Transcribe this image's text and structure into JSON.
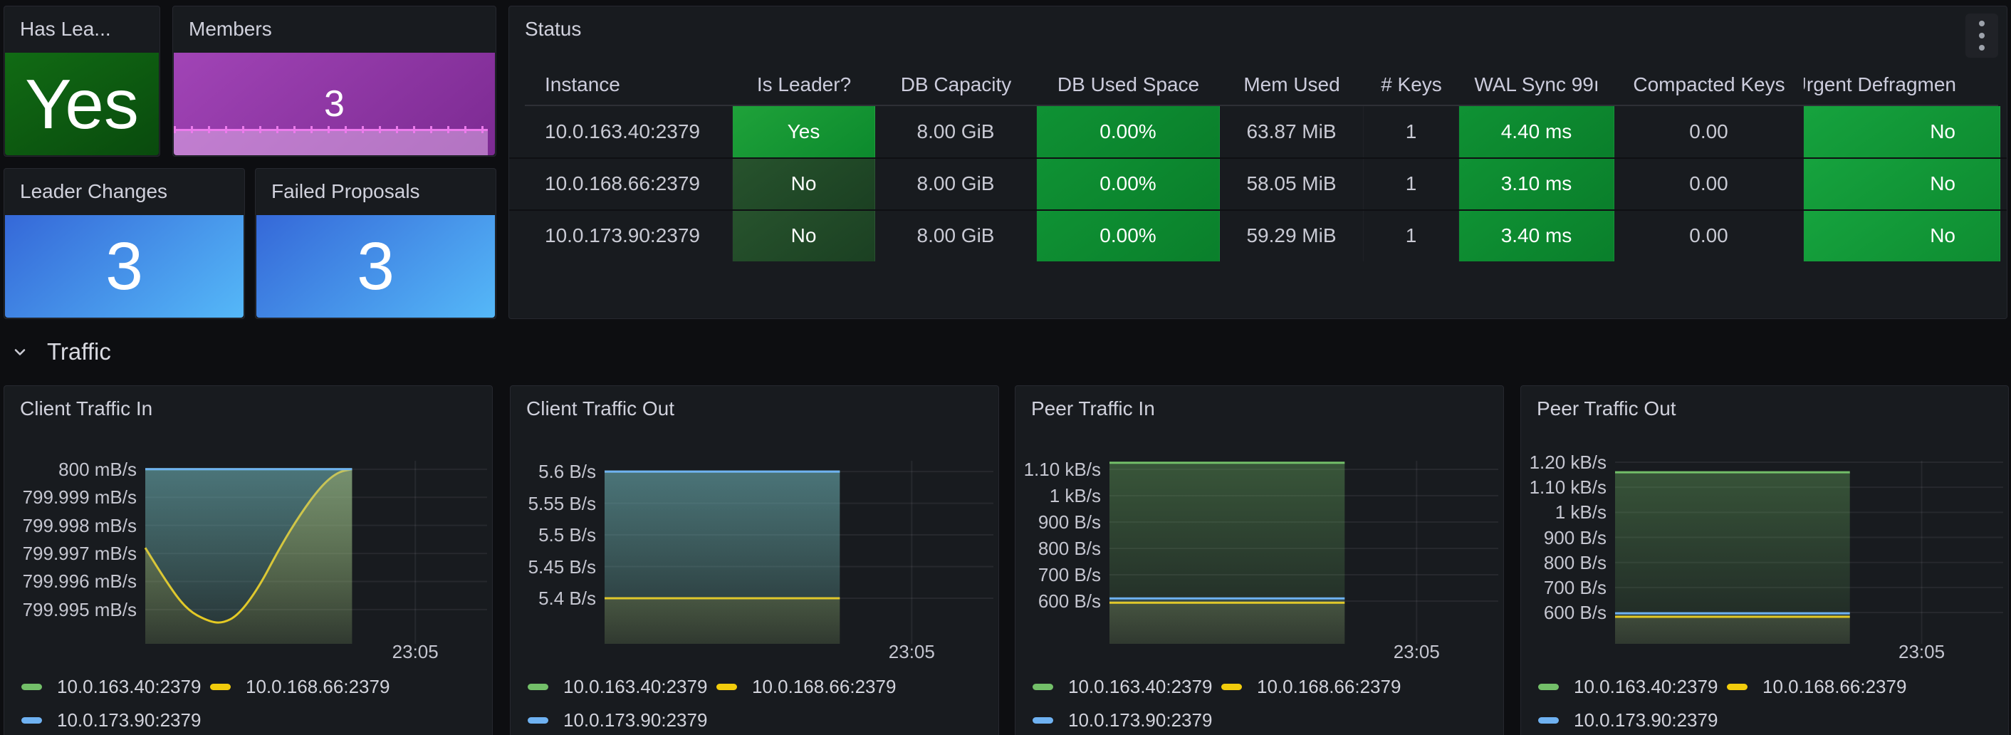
{
  "colors": {
    "page_bg": "#0d0e11",
    "panel_bg": "#181b1f",
    "panel_border": "#26282f",
    "text": "#ccccdc",
    "grid": "rgba(204,204,220,0.08)",
    "series_green": "#73BF69",
    "series_yellow": "#F2CC0C",
    "series_blue": "#6FB2F2",
    "stat_green_a": "#116b14",
    "stat_green_b": "#094a0d",
    "stat_blue_a": "#3568d8",
    "stat_blue_b": "#55b8f8",
    "stat_purple_a": "#a144b6",
    "stat_purple_b": "#7c2a92",
    "spark_line": "#EC7BEC",
    "spark_fill": "rgba(233,190,242,0.5)",
    "cell_yes_a": "#1fa23a",
    "cell_yes_b": "#0c8a2d",
    "cell_no_a": "#27532d",
    "cell_no_b": "#1b4022",
    "cell_green_a": "#0f9234",
    "cell_green_b": "#0a7f2b",
    "cell_green2_a": "#16a33e",
    "cell_green2_b": "#0e8c31"
  },
  "icons": {
    "panel_menu": "kebab-vertical-icon",
    "section_toggle": "chevron-down-icon"
  },
  "stats": {
    "has_leader": {
      "title": "Has Lea...",
      "value": "Yes"
    },
    "members": {
      "title": "Members",
      "value": "3"
    },
    "leader_changes": {
      "title": "Leader Changes",
      "value": "3"
    },
    "failed_proposals": {
      "title": "Failed Proposals",
      "value": "3"
    }
  },
  "status_table": {
    "title": "Status",
    "columns": [
      "Instance",
      "Is Leader?",
      "DB Capacity",
      "DB Used Space",
      "Mem Used",
      "# Keys",
      "WAL Sync 99ı",
      "Compacted Keys",
      "Urgent Defragmen"
    ],
    "rows": [
      [
        "10.0.163.40:2379",
        "Yes",
        "8.00 GiB",
        "0.00%",
        "63.87 MiB",
        "1",
        "4.40 ms",
        "0.00",
        "No"
      ],
      [
        "10.0.168.66:2379",
        "No",
        "8.00 GiB",
        "0.00%",
        "58.05 MiB",
        "1",
        "3.10 ms",
        "0.00",
        "No"
      ],
      [
        "10.0.173.90:2379",
        "No",
        "8.00 GiB",
        "0.00%",
        "59.29 MiB",
        "1",
        "3.40 ms",
        "0.00",
        "No"
      ]
    ]
  },
  "section": {
    "title": "Traffic"
  },
  "chart_data": [
    {
      "id": "members-sparkline",
      "type": "line",
      "title": "Members",
      "series": [
        {
          "name": "members",
          "color": "purple",
          "values": [
            3,
            3
          ]
        }
      ],
      "note": "flat sparkline at value 3"
    },
    {
      "id": "client-traffic-in",
      "type": "area",
      "title": "Client Traffic In",
      "x_tick": "23:05",
      "ylim": [
        799.99378,
        800.0003
      ],
      "y_ticks": [
        {
          "v": 800,
          "label": "800 mB/s"
        },
        {
          "v": 799.999,
          "label": "799.999 mB/s"
        },
        {
          "v": 799.998,
          "label": "799.998 mB/s"
        },
        {
          "v": 799.997,
          "label": "799.997 mB/s"
        },
        {
          "v": 799.996,
          "label": "799.996 mB/s"
        },
        {
          "v": 799.995,
          "label": "799.995 mB/s"
        }
      ],
      "series": [
        {
          "name": "10.0.163.40:2379",
          "color": "green",
          "points": [
            [
              0,
              800
            ],
            [
              1,
              800
            ]
          ]
        },
        {
          "name": "10.0.168.66:2379",
          "color": "yellow",
          "points": [
            [
              0,
              799.9972
            ],
            [
              0.1,
              799.996
            ],
            [
              0.2,
              799.995
            ],
            [
              0.3,
              799.9946
            ],
            [
              0.37,
              799.9945
            ],
            [
              0.45,
              799.9948
            ],
            [
              0.55,
              799.9958
            ],
            [
              0.65,
              799.9972
            ],
            [
              0.75,
              799.9984
            ],
            [
              0.85,
              799.9994
            ],
            [
              0.93,
              799.9999
            ],
            [
              1,
              800
            ]
          ]
        },
        {
          "name": "10.0.173.90:2379",
          "color": "blue",
          "points": [
            [
              0,
              800
            ],
            [
              1,
              800
            ]
          ]
        }
      ]
    },
    {
      "id": "client-traffic-out",
      "type": "area",
      "title": "Client Traffic Out",
      "x_tick": "23:05",
      "ylim": [
        5.328,
        5.617
      ],
      "y_ticks": [
        {
          "v": 5.6,
          "label": "5.6 B/s"
        },
        {
          "v": 5.55,
          "label": "5.55 B/s"
        },
        {
          "v": 5.5,
          "label": "5.5 B/s"
        },
        {
          "v": 5.45,
          "label": "5.45 B/s"
        },
        {
          "v": 5.4,
          "label": "5.4 B/s"
        }
      ],
      "series": [
        {
          "name": "10.0.163.40:2379",
          "color": "green",
          "points": [
            [
              0,
              5.6
            ],
            [
              1,
              5.6
            ]
          ]
        },
        {
          "name": "10.0.168.66:2379",
          "color": "yellow",
          "points": [
            [
              0,
              5.4
            ],
            [
              1,
              5.4
            ]
          ]
        },
        {
          "name": "10.0.173.90:2379",
          "color": "blue",
          "points": [
            [
              0,
              5.6
            ],
            [
              1,
              5.6
            ]
          ]
        }
      ]
    },
    {
      "id": "peer-traffic-in",
      "type": "area",
      "title": "Peer Traffic In",
      "x_tick": "23:05",
      "ylim": [
        437.8,
        1132.4
      ],
      "y_ticks": [
        {
          "v": 1100,
          "label": "1.10 kB/s"
        },
        {
          "v": 1000,
          "label": "1 kB/s"
        },
        {
          "v": 900,
          "label": "900 B/s"
        },
        {
          "v": 800,
          "label": "800 B/s"
        },
        {
          "v": 700,
          "label": "700 B/s"
        },
        {
          "v": 600,
          "label": "600 B/s"
        }
      ],
      "series": [
        {
          "name": "10.0.163.40:2379",
          "color": "green",
          "points": [
            [
              0,
              1125
            ],
            [
              1,
              1125
            ]
          ]
        },
        {
          "name": "10.0.168.66:2379",
          "color": "yellow",
          "points": [
            [
              0,
              594
            ],
            [
              1,
              594
            ]
          ]
        },
        {
          "name": "10.0.173.90:2379",
          "color": "blue",
          "points": [
            [
              0,
              610
            ],
            [
              1,
              610
            ]
          ]
        }
      ]
    },
    {
      "id": "peer-traffic-out",
      "type": "area",
      "title": "Peer Traffic Out",
      "x_tick": "23:05",
      "ylim": [
        475,
        1205.7
      ],
      "y_ticks": [
        {
          "v": 1200,
          "label": "1.20 kB/s"
        },
        {
          "v": 1100,
          "label": "1.10 kB/s"
        },
        {
          "v": 1000,
          "label": "1 kB/s"
        },
        {
          "v": 900,
          "label": "900 B/s"
        },
        {
          "v": 800,
          "label": "800 B/s"
        },
        {
          "v": 700,
          "label": "700 B/s"
        },
        {
          "v": 600,
          "label": "600 B/s"
        }
      ],
      "series": [
        {
          "name": "10.0.163.40:2379",
          "color": "green",
          "points": [
            [
              0,
              1160
            ],
            [
              1,
              1160
            ]
          ]
        },
        {
          "name": "10.0.168.66:2379",
          "color": "yellow",
          "points": [
            [
              0,
              583
            ],
            [
              1,
              583
            ]
          ]
        },
        {
          "name": "10.0.173.90:2379",
          "color": "blue",
          "points": [
            [
              0,
              597
            ],
            [
              1,
              597
            ]
          ]
        }
      ]
    }
  ]
}
